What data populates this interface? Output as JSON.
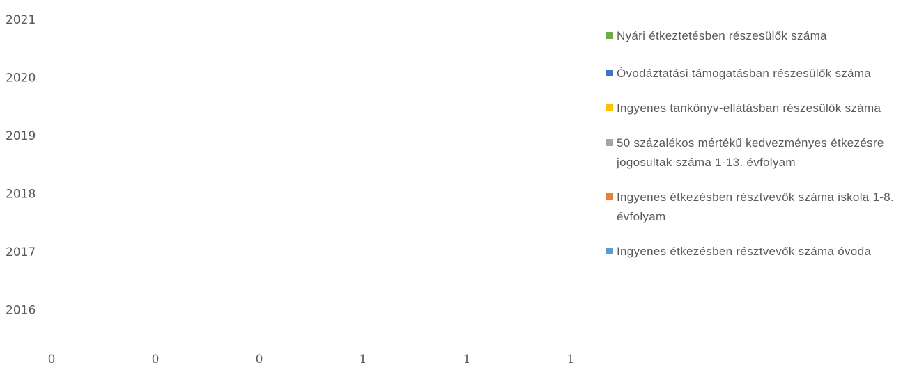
{
  "chart_data": {
    "type": "bar",
    "orientation": "horizontal",
    "categories": [
      "2016",
      "2017",
      "2018",
      "2019",
      "2020",
      "2021"
    ],
    "x_ticks": [
      "0",
      "0",
      "0",
      "1",
      "1",
      "1"
    ],
    "series": [
      {
        "name": "Nyári étkeztetésben részesülők száma",
        "color": "#70ad47",
        "values": [
          0,
          0,
          0,
          0,
          0,
          0
        ]
      },
      {
        "name": "Óvodáztatási támogatásban részesülők száma",
        "color": "#4472c4",
        "values": [
          0,
          0,
          0,
          0,
          0,
          0
        ]
      },
      {
        "name": "Ingyenes tankönyv-ellátásban részesülők száma",
        "color": "#ffc000",
        "values": [
          0,
          0,
          0,
          0,
          0,
          0
        ]
      },
      {
        "name": "50 százalékos mértékű kedvezményes étkezésre jogosultak száma 1-13. évfolyam",
        "color": "#a5a5a5",
        "values": [
          0,
          0,
          0,
          0,
          0,
          0
        ]
      },
      {
        "name": "Ingyenes étkezésben résztvevők száma iskola 1-8. évfolyam",
        "color": "#ed7d31",
        "values": [
          0,
          0,
          0,
          0,
          0,
          0
        ]
      },
      {
        "name": "Ingyenes étkezésben résztvevők száma óvoda",
        "color": "#5b9bd5",
        "values": [
          0,
          0,
          0,
          0,
          0,
          0
        ]
      }
    ],
    "legend_position": "right",
    "grid": false
  }
}
